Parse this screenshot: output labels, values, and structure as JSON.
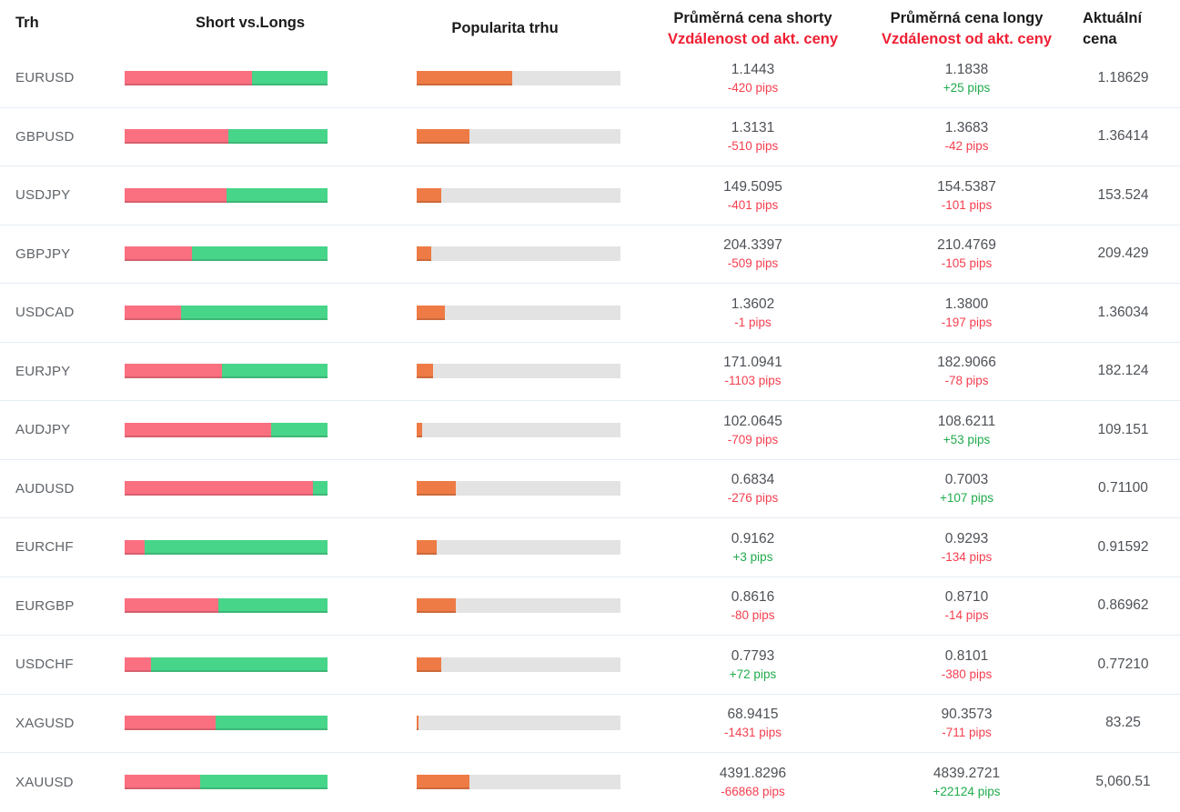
{
  "header": {
    "col_market": "Trh",
    "col_short_vs_longs": "Short vs.Longs",
    "col_popularity": "Popularita trhu",
    "col_short_avg_line1": "Průměrná cena shorty",
    "col_short_avg_line2": "Vzdálenost od akt. ceny",
    "col_long_avg_line1": "Průměrná cena longy",
    "col_long_avg_line2": "Vzdálenost od akt. ceny",
    "col_current_line1": "Aktuální",
    "col_current_line2": "cena"
  },
  "colors": {
    "short_bar": "#fa7080",
    "long_bar": "#47d58a",
    "popularity_fill": "#ee7b45",
    "popularity_track": "#e3e3e3",
    "pips_negative": "#f43f4f",
    "pips_positive": "#21ab4d",
    "header_red": "#ef1f33",
    "row_divider": "#e6edf3"
  },
  "rows": [
    {
      "market": "EURUSD",
      "short_pct": 63,
      "popularity_pct": 47,
      "short_price": "1.1443",
      "short_pips": "-420 pips",
      "short_dir": "neg",
      "long_price": "1.1838",
      "long_pips": "+25 pips",
      "long_dir": "pos",
      "current_price": "1.18629"
    },
    {
      "market": "GBPUSD",
      "short_pct": 51,
      "popularity_pct": 26,
      "short_price": "1.3131",
      "short_pips": "-510 pips",
      "short_dir": "neg",
      "long_price": "1.3683",
      "long_pips": "-42 pips",
      "long_dir": "neg",
      "current_price": "1.36414"
    },
    {
      "market": "USDJPY",
      "short_pct": 50,
      "popularity_pct": 12,
      "short_price": "149.5095",
      "short_pips": "-401 pips",
      "short_dir": "neg",
      "long_price": "154.5387",
      "long_pips": "-101 pips",
      "long_dir": "neg",
      "current_price": "153.524"
    },
    {
      "market": "GBPJPY",
      "short_pct": 33,
      "popularity_pct": 7,
      "short_price": "204.3397",
      "short_pips": "-509 pips",
      "short_dir": "neg",
      "long_price": "210.4769",
      "long_pips": "-105 pips",
      "long_dir": "neg",
      "current_price": "209.429"
    },
    {
      "market": "USDCAD",
      "short_pct": 28,
      "popularity_pct": 14,
      "short_price": "1.3602",
      "short_pips": "-1 pips",
      "short_dir": "neg",
      "long_price": "1.3800",
      "long_pips": "-197 pips",
      "long_dir": "neg",
      "current_price": "1.36034"
    },
    {
      "market": "EURJPY",
      "short_pct": 48,
      "popularity_pct": 8,
      "short_price": "171.0941",
      "short_pips": "-1103 pips",
      "short_dir": "neg",
      "long_price": "182.9066",
      "long_pips": "-78 pips",
      "long_dir": "neg",
      "current_price": "182.124"
    },
    {
      "market": "AUDJPY",
      "short_pct": 72,
      "popularity_pct": 2.5,
      "short_price": "102.0645",
      "short_pips": "-709 pips",
      "short_dir": "neg",
      "long_price": "108.6211",
      "long_pips": "+53 pips",
      "long_dir": "pos",
      "current_price": "109.151"
    },
    {
      "market": "AUDUSD",
      "short_pct": 93,
      "popularity_pct": 19,
      "short_price": "0.6834",
      "short_pips": "-276 pips",
      "short_dir": "neg",
      "long_price": "0.7003",
      "long_pips": "+107 pips",
      "long_dir": "pos",
      "current_price": "0.71100"
    },
    {
      "market": "EURCHF",
      "short_pct": 10,
      "popularity_pct": 10,
      "short_price": "0.9162",
      "short_pips": "+3 pips",
      "short_dir": "pos",
      "long_price": "0.9293",
      "long_pips": "-134 pips",
      "long_dir": "neg",
      "current_price": "0.91592"
    },
    {
      "market": "EURGBP",
      "short_pct": 46,
      "popularity_pct": 19,
      "short_price": "0.8616",
      "short_pips": "-80 pips",
      "short_dir": "neg",
      "long_price": "0.8710",
      "long_pips": "-14 pips",
      "long_dir": "neg",
      "current_price": "0.86962"
    },
    {
      "market": "USDCHF",
      "short_pct": 13,
      "popularity_pct": 12,
      "short_price": "0.7793",
      "short_pips": "+72 pips",
      "short_dir": "pos",
      "long_price": "0.8101",
      "long_pips": "-380 pips",
      "long_dir": "neg",
      "current_price": "0.77210"
    },
    {
      "market": "XAGUSD",
      "short_pct": 45,
      "popularity_pct": 1,
      "short_price": "68.9415",
      "short_pips": "-1431 pips",
      "short_dir": "neg",
      "long_price": "90.3573",
      "long_pips": "-711 pips",
      "long_dir": "neg",
      "current_price": "83.25"
    },
    {
      "market": "XAUUSD",
      "short_pct": 37,
      "popularity_pct": 26,
      "short_price": "4391.8296",
      "short_pips": "-66868 pips",
      "short_dir": "neg",
      "long_price": "4839.2721",
      "long_pips": "+22124 pips",
      "long_dir": "pos",
      "current_price": "5,060.51"
    }
  ]
}
